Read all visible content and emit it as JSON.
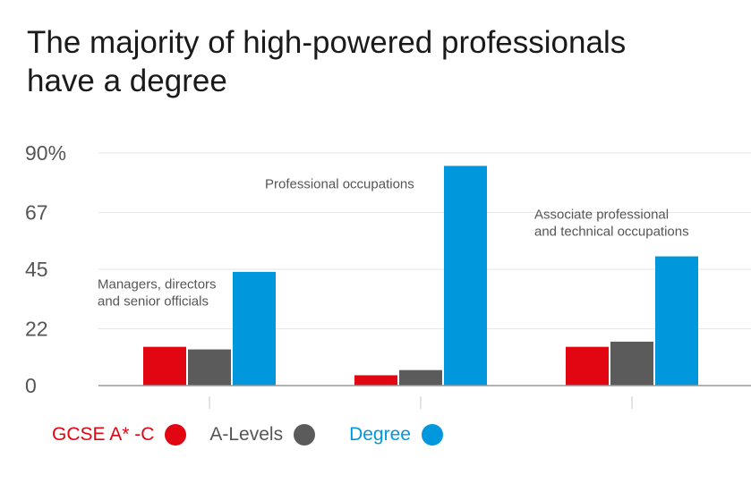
{
  "title_lines": [
    "The majority of high-powered professionals",
    "have a degree"
  ],
  "colors": {
    "gcse": "#e20612",
    "alevels": "#5b5b5b",
    "degree": "#0097dc",
    "grid": "#e6e6e6",
    "axis": "#999999",
    "tick_label": "#555555",
    "group_label": "#555555"
  },
  "legend": {
    "items": [
      {
        "label": "GCSE A* -C",
        "color": "#e20612",
        "label_color": "#e20612",
        "icon": "red-circle-icon"
      },
      {
        "label": "A-Levels",
        "color": "#5b5b5b",
        "label_color": "#555555",
        "icon": "grey-circle-icon"
      },
      {
        "label": "Degree",
        "color": "#0097dc",
        "label_color": "#0097dc",
        "icon": "blue-circle-icon"
      }
    ]
  },
  "chart_data": {
    "type": "bar",
    "title": "The majority of high-powered professionals have a degree",
    "categories": [
      "Managers, directors and senior officials",
      "Professional occupations",
      "Associate professional and technical occupations"
    ],
    "category_label_lines": [
      [
        "Managers, directors",
        "and senior officials"
      ],
      [
        "Professional occupations"
      ],
      [
        "Associate professional",
        "and technical occupations"
      ]
    ],
    "series": [
      {
        "name": "GCSE A* -C",
        "values": [
          15,
          4,
          15
        ]
      },
      {
        "name": "A-Levels",
        "values": [
          14,
          6,
          17
        ]
      },
      {
        "name": "Degree",
        "values": [
          44,
          85,
          50
        ]
      }
    ],
    "yticks": [
      0,
      22,
      45,
      67,
      90
    ],
    "ytick_labels": [
      "0",
      "22",
      "45",
      "67",
      "90%"
    ],
    "ylim": [
      0,
      90
    ],
    "grid": true,
    "legend_position": "bottom-left",
    "xlabel": "",
    "ylabel": ""
  }
}
